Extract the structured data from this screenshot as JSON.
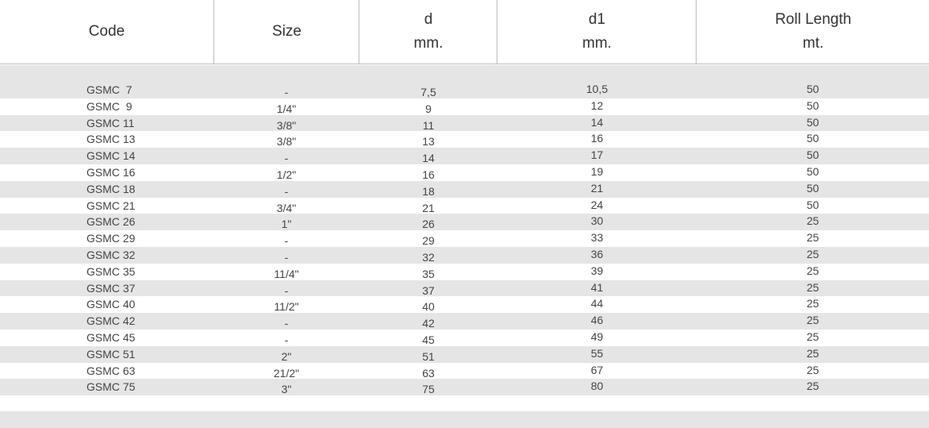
{
  "header": {
    "code": "Code",
    "size": "Size",
    "d": "d",
    "d_unit": "mm.",
    "d1": "d1",
    "d1_unit": "mm.",
    "roll": "Roll Length",
    "roll_unit": "mt."
  },
  "rows": [
    {
      "code": "GSMC  7",
      "size": "-",
      "d": "7,5",
      "d1": "10,5",
      "roll": "50"
    },
    {
      "code": "GSMC  9",
      "size": "1/4\"",
      "d": "9",
      "d1": "12",
      "roll": "50"
    },
    {
      "code": "GSMC 11",
      "size": "3/8\"",
      "d": "11",
      "d1": "14",
      "roll": "50"
    },
    {
      "code": "GSMC 13",
      "size": "3/8\"",
      "d": "13",
      "d1": "16",
      "roll": "50"
    },
    {
      "code": "GSMC 14",
      "size": "-",
      "d": "14",
      "d1": "17",
      "roll": "50"
    },
    {
      "code": "GSMC 16",
      "size": "1/2\"",
      "d": "16",
      "d1": "19",
      "roll": "50"
    },
    {
      "code": "GSMC 18",
      "size": "-",
      "d": "18",
      "d1": "21",
      "roll": "50"
    },
    {
      "code": "GSMC 21",
      "size": "3/4\"",
      "d": "21",
      "d1": "24",
      "roll": "50"
    },
    {
      "code": "GSMC 26",
      "size": "1\"",
      "d": "26",
      "d1": "30",
      "roll": "25"
    },
    {
      "code": "GSMC 29",
      "size": "-",
      "d": "29",
      "d1": "33",
      "roll": "25"
    },
    {
      "code": "GSMC 32",
      "size": "-",
      "d": "32",
      "d1": "36",
      "roll": "25"
    },
    {
      "code": "GSMC 35",
      "size": "11/4\"",
      "d": "35",
      "d1": "39",
      "roll": "25"
    },
    {
      "code": "GSMC 37",
      "size": "-",
      "d": "37",
      "d1": "41",
      "roll": "25"
    },
    {
      "code": "GSMC 40",
      "size": "11/2\"",
      "d": "40",
      "d1": "44",
      "roll": "25"
    },
    {
      "code": "GSMC 42",
      "size": "-",
      "d": "42",
      "d1": "46",
      "roll": "25"
    },
    {
      "code": "GSMC 45",
      "size": "-",
      "d": "45",
      "d1": "49",
      "roll": "25"
    },
    {
      "code": "GSMC 51",
      "size": "2\"",
      "d": "51",
      "d1": "55",
      "roll": "25"
    },
    {
      "code": "GSMC 63",
      "size": "21/2\"",
      "d": "63",
      "d1": "67",
      "roll": "25"
    },
    {
      "code": "GSMC 75",
      "size": "3\"",
      "d": "75",
      "d1": "80",
      "roll": "25"
    }
  ]
}
